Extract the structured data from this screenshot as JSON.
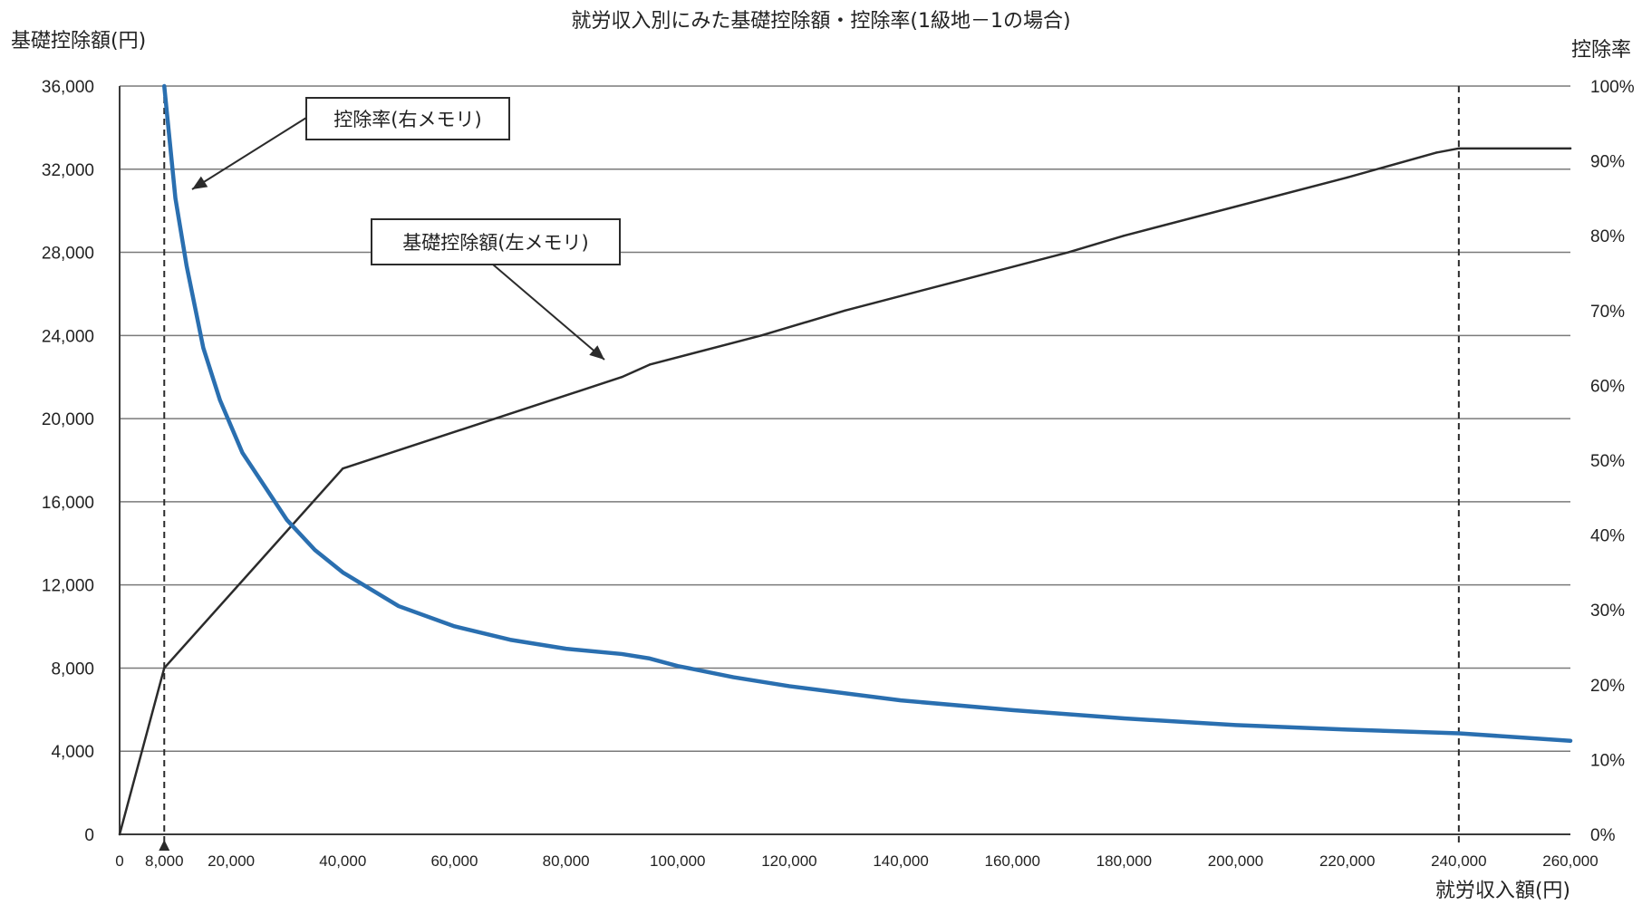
{
  "chart_data": {
    "type": "line",
    "title": "就労収入別にみた基礎控除額・控除率(1級地－1の場合)",
    "ylabel_left": "基礎控除額(円)",
    "ylabel_right": "控除率",
    "xlabel": "就労収入額(円)",
    "xlim": [
      0,
      260000
    ],
    "ylim_left": [
      0,
      36000
    ],
    "ylim_right": [
      0,
      100
    ],
    "x_ticks": [
      0,
      8000,
      20000,
      40000,
      60000,
      80000,
      100000,
      120000,
      140000,
      160000,
      180000,
      200000,
      220000,
      240000,
      260000
    ],
    "x_tick_labels": [
      "0",
      "8,000",
      "20,000",
      "40,000",
      "60,000",
      "80,000",
      "100,000",
      "120,000",
      "140,000",
      "160,000",
      "180,000",
      "200,000",
      "220,000",
      "240,000",
      "260,000"
    ],
    "y_left_ticks": [
      0,
      4000,
      8000,
      12000,
      16000,
      20000,
      24000,
      28000,
      32000,
      36000
    ],
    "y_left_tick_labels": [
      "0",
      "4,000",
      "8,000",
      "12,000",
      "16,000",
      "20,000",
      "24,000",
      "28,000",
      "32,000",
      "36,000"
    ],
    "y_right_ticks": [
      0,
      10,
      20,
      30,
      40,
      50,
      60,
      70,
      80,
      90,
      100
    ],
    "y_right_tick_labels": [
      "0%",
      "10%",
      "20%",
      "30%",
      "40%",
      "50%",
      "60%",
      "70%",
      "80%",
      "90%",
      "100%"
    ],
    "grid": "horizontal",
    "reference_lines_x": [
      8000,
      240000
    ],
    "series": [
      {
        "name": "基礎控除額(左メモリ)",
        "axis": "left",
        "color": "#2b2b2b",
        "x": [
          0,
          8000,
          40000,
          90000,
          95000,
          115000,
          130000,
          150000,
          170000,
          180000,
          220000,
          236000,
          240000,
          260000
        ],
        "y": [
          0,
          8000,
          17600,
          22000,
          22600,
          24000,
          25200,
          26600,
          28000,
          28800,
          31600,
          32800,
          33000,
          33000
        ]
      },
      {
        "name": "控除率(右メモリ)",
        "axis": "right",
        "color": "#2a6fb0",
        "x": [
          8000,
          10000,
          12000,
          15000,
          18000,
          22000,
          26000,
          30000,
          35000,
          40000,
          50000,
          60000,
          70000,
          80000,
          90000,
          95000,
          100000,
          110000,
          120000,
          140000,
          160000,
          180000,
          200000,
          220000,
          240000,
          260000
        ],
        "y": [
          100,
          85,
          76,
          65,
          58,
          51,
          46.5,
          42,
          38,
          35,
          30.5,
          27.8,
          26,
          24.8,
          24.1,
          23.5,
          22.5,
          21,
          19.8,
          17.9,
          16.6,
          15.5,
          14.6,
          14,
          13.5,
          12.5
        ]
      }
    ],
    "annotations": [
      {
        "text": "控除率(右メモリ)",
        "target_series": "控除率(右メモリ)"
      },
      {
        "text": "基礎控除額(左メモリ)",
        "target_series": "基礎控除額(左メモリ)"
      }
    ],
    "colors": {
      "gridline": "#7a7a7a",
      "axis": "#3a3a3a",
      "text": "#222222"
    }
  }
}
